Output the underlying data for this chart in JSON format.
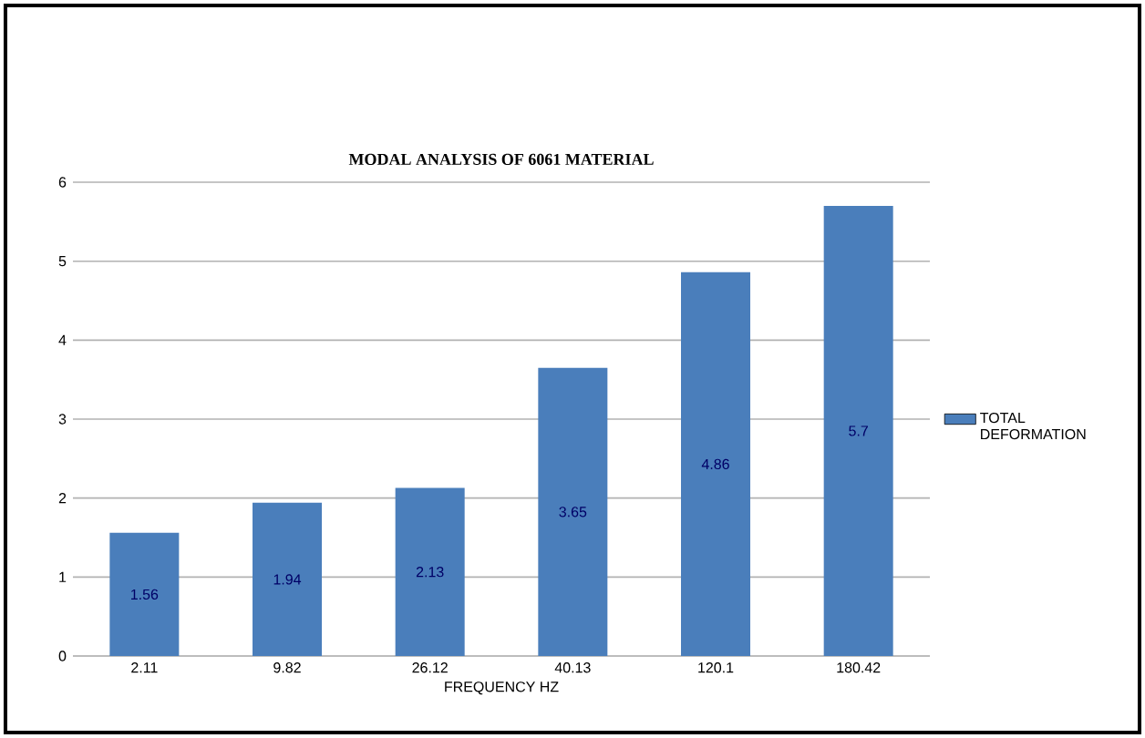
{
  "chart_data": {
    "type": "bar",
    "title": "MODAL ANALYSIS OF 6061 MATERIAL",
    "xlabel": "FREQUENCY HZ",
    "categories": [
      "2.11",
      "9.82",
      "26.12",
      "40.13",
      "120.1",
      "180.42"
    ],
    "series": [
      {
        "name": "TOTAL DEFORMATION",
        "color": "#4a7ebb",
        "values": [
          1.56,
          1.94,
          2.13,
          3.65,
          4.86,
          5.7
        ]
      }
    ],
    "ylim": [
      0,
      6
    ],
    "yticks": [
      0,
      1,
      2,
      3,
      4,
      5,
      6
    ],
    "grid": "y",
    "legend": "right",
    "data_labels": true
  }
}
